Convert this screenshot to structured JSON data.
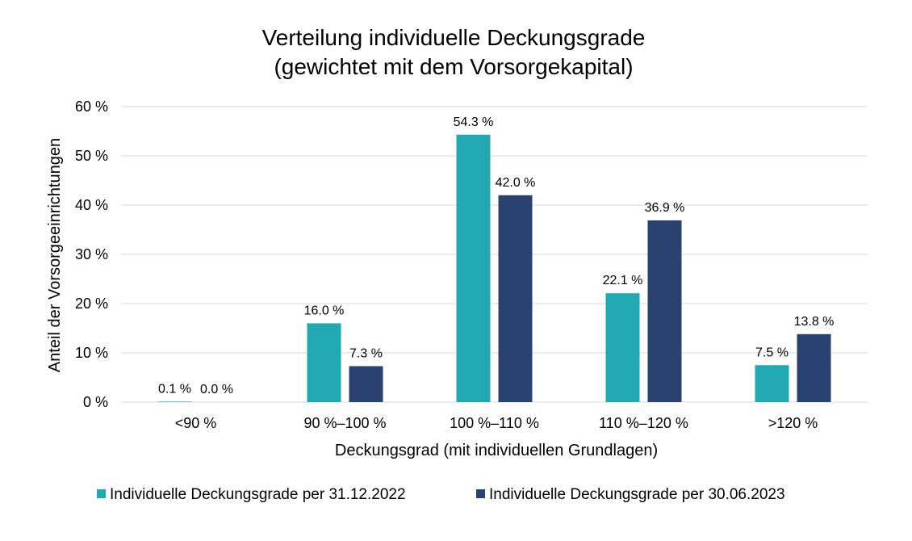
{
  "chart_data": {
    "type": "bar",
    "title": [
      "Verteilung individuelle Deckungsgrade",
      "(gewichtet mit dem Vorsorgekapital)"
    ],
    "xlabel": "Deckungsgrad (mit individuellen Grundlagen)",
    "ylabel": "Anteil der Vorsorgeeinrichtungen",
    "categories": [
      "<90 %",
      "90 %–100 %",
      "100 %–110 %",
      "110 %–120 %",
      ">120 %"
    ],
    "ylim": [
      0,
      60
    ],
    "yticks": [
      0,
      10,
      20,
      30,
      40,
      50,
      60
    ],
    "ytick_labels": [
      "0 %",
      "10 %",
      "20 %",
      "30 %",
      "40 %",
      "50 %",
      "60 %"
    ],
    "grid": true,
    "legend_position": "bottom",
    "series": [
      {
        "name": "Individuelle Deckungsgrade per 31.12.2022",
        "color": "#20a9b0",
        "values": [
          0.1,
          16.0,
          54.3,
          22.1,
          7.5
        ],
        "labels": [
          "0.1 %",
          "16.0 %",
          "54.3 %",
          "22.1 %",
          "7.5 %"
        ]
      },
      {
        "name": "Individuelle Deckungsgrade per 30.06.2023",
        "color": "#2a4270",
        "values": [
          0.0,
          7.3,
          42.0,
          36.9,
          13.8
        ],
        "labels": [
          "0.0 %",
          "7.3 %",
          "42.0 %",
          "36.9 %",
          "13.8 %"
        ]
      }
    ]
  }
}
